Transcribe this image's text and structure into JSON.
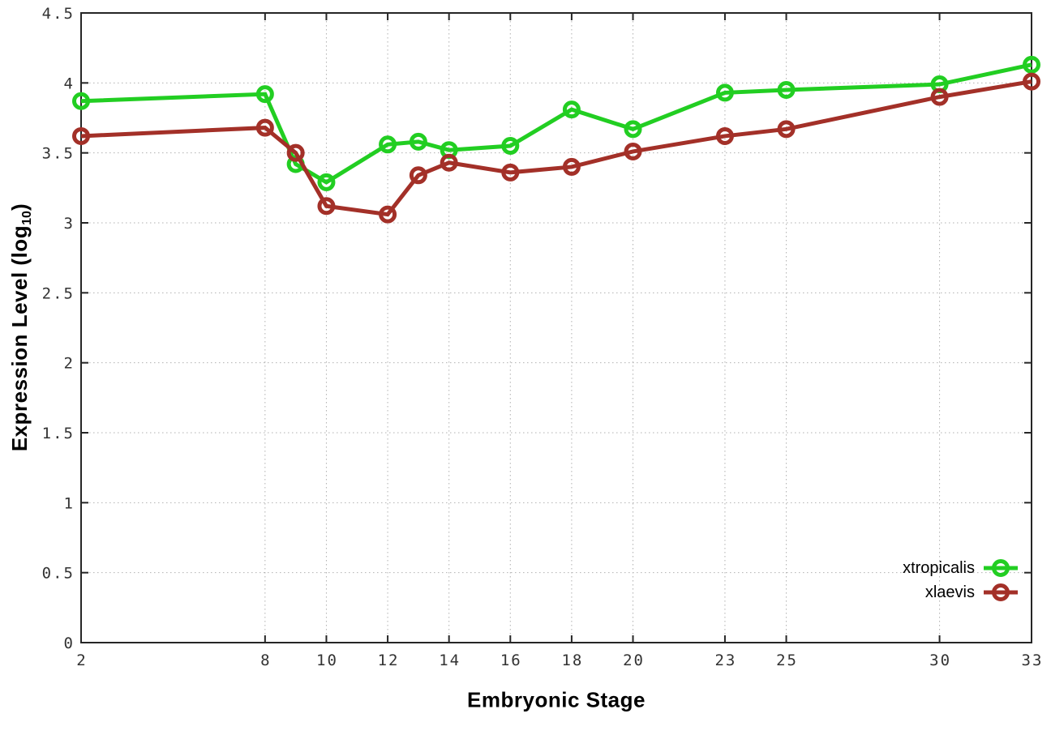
{
  "page": {
    "background": "#ffffff"
  },
  "chart_data": {
    "type": "line",
    "title": "",
    "xlabel": "Embryonic Stage",
    "ylabel": "Expression Level (log10)",
    "ylabel_main": "Expression Level (log",
    "ylabel_sub": "10",
    "ylabel_close": ")",
    "x": [
      2,
      8,
      9,
      10,
      12,
      13,
      14,
      16,
      18,
      20,
      23,
      25,
      30,
      33
    ],
    "xticks": [
      2,
      8,
      10,
      12,
      14,
      16,
      18,
      20,
      23,
      25,
      30,
      33
    ],
    "yticks": [
      0,
      0.5,
      1,
      1.5,
      2,
      2.5,
      3,
      3.5,
      4,
      4.5
    ],
    "xlim": [
      2,
      33
    ],
    "ylim": [
      0,
      4.5
    ],
    "grid": true,
    "grid_style": "dotted",
    "legend_position": "inside-right-lower",
    "marker": "open-circle",
    "axis_color": "#262626",
    "grid_color": "#b0b0b0",
    "tick_label_color": "#333333",
    "series": [
      {
        "name": "xtropicalis",
        "color": "#22CE22",
        "values": [
          3.87,
          3.92,
          3.42,
          3.29,
          3.56,
          3.58,
          3.52,
          3.55,
          3.81,
          3.67,
          3.93,
          3.95,
          3.99,
          4.13
        ]
      },
      {
        "name": "xlaevis",
        "color": "#A33028",
        "values": [
          3.62,
          3.68,
          3.5,
          3.12,
          3.06,
          3.34,
          3.43,
          3.36,
          3.4,
          3.51,
          3.62,
          3.67,
          3.9,
          4.01
        ]
      }
    ]
  }
}
